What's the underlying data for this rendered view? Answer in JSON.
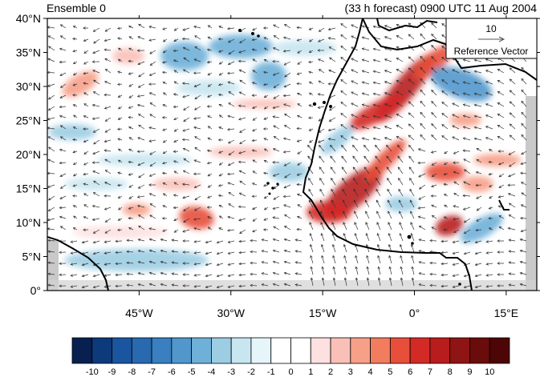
{
  "header": {
    "left_title": "Ensemble 0",
    "right_title": "(33 h forecast) 0900 UTC 11 Aug 2004"
  },
  "map": {
    "lat_labels": [
      "40°N",
      "35°N",
      "30°N",
      "25°N",
      "20°N",
      "15°N",
      "10°N",
      "5°N",
      "0°"
    ],
    "lat_values": [
      40,
      35,
      30,
      25,
      20,
      15,
      10,
      5,
      0
    ],
    "lon_labels": [
      "45°W",
      "30°W",
      "15°W",
      "0°",
      "15°E"
    ],
    "lon_values": [
      -45,
      -30,
      -15,
      0,
      15
    ],
    "lon_range": [
      -60,
      20
    ],
    "lat_range": [
      0,
      40
    ]
  },
  "reference_vector": {
    "magnitude": "10",
    "label": "Reference Vector"
  },
  "colorbar": {
    "labels": [
      "-10",
      "-9",
      "-8",
      "-7",
      "-6",
      "-5",
      "-4",
      "-3",
      "-2",
      "-1",
      "0",
      "1",
      "2",
      "3",
      "4",
      "5",
      "6",
      "7",
      "8",
      "9",
      "10"
    ],
    "colors": [
      "#08204f",
      "#0d3a7a",
      "#1a55a0",
      "#2869b0",
      "#3a7fbf",
      "#5197cc",
      "#6fb0d8",
      "#9ccde3",
      "#c8e6f0",
      "#e6f5fa",
      "#ffffff",
      "#ffffff",
      "#fde0e0",
      "#f9c0b8",
      "#f6a088",
      "#f27c5e",
      "#e84f3a",
      "#d42a26",
      "#b81c1c",
      "#8f1414",
      "#6b0c0c",
      "#4d0505"
    ]
  },
  "colors": {
    "land_gray": "#c9c9c9",
    "coast": "#000000",
    "vector": "#333333"
  }
}
